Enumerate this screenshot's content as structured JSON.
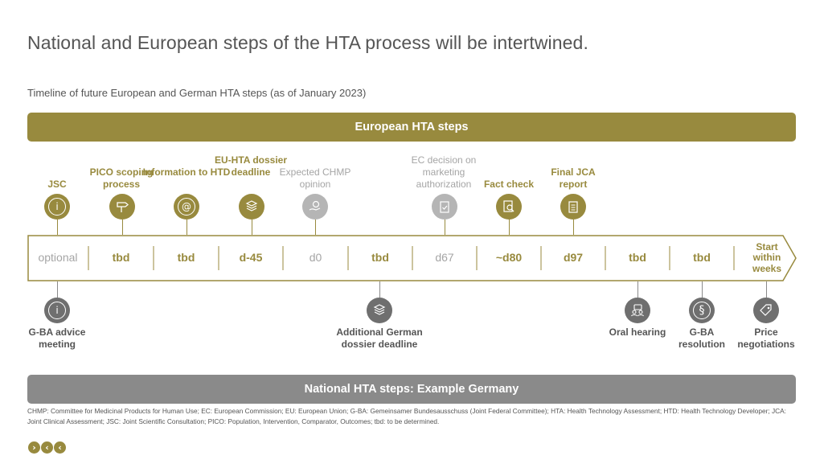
{
  "title": "National and European steps of the HTA process will be intertwined.",
  "subtitle": "Timeline of future European and German HTA steps (as of January 2023)",
  "eu_band": "European HTA steps",
  "national_band": "National HTA steps: Example Germany",
  "timeline": [
    "optional",
    "tbd",
    "tbd",
    "d-45",
    "d0",
    "tbd",
    "d67",
    "~d80",
    "d97",
    "tbd",
    "tbd",
    "Start within weeks"
  ],
  "eu_steps": [
    {
      "label": "JSC",
      "icon": "info-icon"
    },
    {
      "label": "PICO scoping process",
      "icon": "signpost-icon"
    },
    {
      "label": "Information to HTD",
      "icon": "at-icon"
    },
    {
      "label": "EU-HTA dossier deadline",
      "icon": "document-stack-icon"
    },
    {
      "label": "Expected CHMP opinion",
      "icon": "hand-coin-icon"
    },
    {
      "label": "EC decision on marketing authorization",
      "icon": "clipboard-check-icon"
    },
    {
      "label": "Fact check",
      "icon": "magnifier-document-icon"
    },
    {
      "label": "Final JCA report",
      "icon": "clipboard-list-icon"
    }
  ],
  "national_steps": [
    {
      "label": "G-BA advice meeting",
      "icon": "info-icon"
    },
    {
      "label": "Additional German dossier deadline",
      "icon": "document-stack-icon"
    },
    {
      "label": "Oral hearing",
      "icon": "people-speech-icon"
    },
    {
      "label": "G-BA resolution",
      "icon": "paragraph-icon"
    },
    {
      "label": "Price negotiations",
      "icon": "price-tag-icon"
    }
  ],
  "footnote": "CHMP: Committee for Medicinal Products for Human Use; EC: European Commission; EU: European Union; G-BA: Gemeinsamer Bundesausschuss (Joint Federal Committee); HTA: Health Technology Assessment; HTD: Health Technology Developer; JCA: Joint Clinical Assessment; JSC: Joint Scientific Consultation; PICO: Population, Intervention, Comparator, Outcomes; tbd: to be determined.",
  "logo": [
    "›",
    "‹",
    "‹"
  ],
  "colors": {
    "gold": "#988a3e",
    "grey": "#8a8a8a",
    "light_grey": "#a5a5a5"
  }
}
